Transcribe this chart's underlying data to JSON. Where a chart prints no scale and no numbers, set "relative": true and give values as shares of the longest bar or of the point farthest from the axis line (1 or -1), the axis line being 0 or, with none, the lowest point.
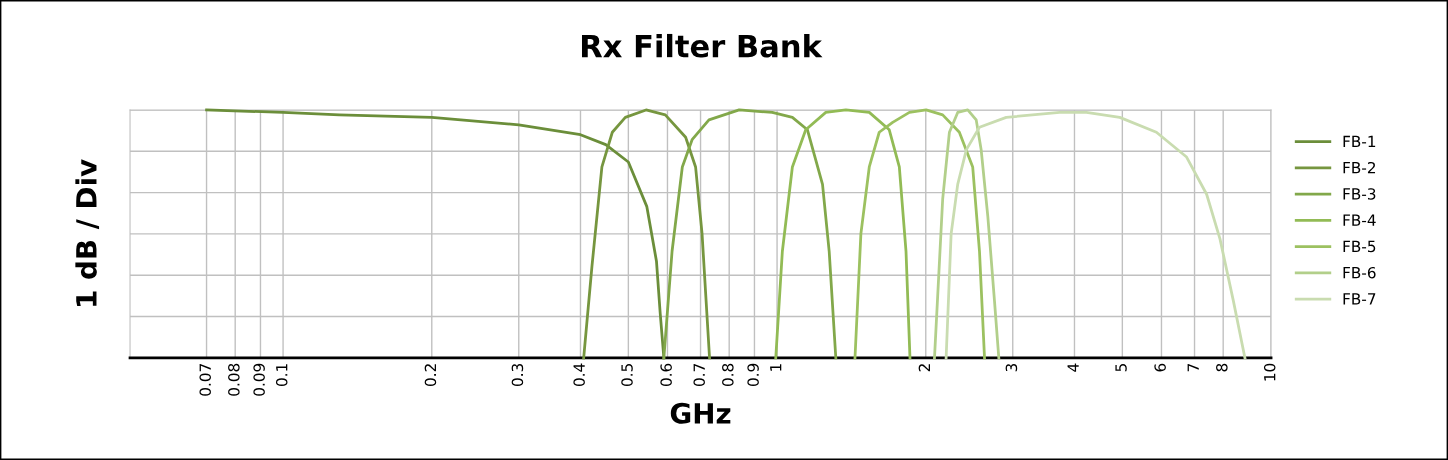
{
  "chart_data": {
    "type": "line",
    "title": "Rx Filter Bank",
    "xlabel": "GHz",
    "ylabel": "1 dB / Div",
    "relative": true,
    "log": "x",
    "xlim": [
      0.049,
      10
    ],
    "xticks": [
      0.07,
      0.08,
      0.09,
      0.1,
      0.2,
      0.3,
      0.4,
      0.5,
      0.6,
      0.7,
      0.8,
      0.9,
      1,
      2,
      3,
      4,
      5,
      6,
      7,
      8,
      10
    ],
    "tick_labels": "x",
    "grid": true,
    "legend": "right",
    "marker": "none",
    "line_style": "solid",
    "series": [
      {
        "name": "FB-1",
        "color": "#6b8e3a",
        "x": [
          0.07,
          0.1,
          0.13,
          0.2,
          0.3,
          0.4,
          0.45,
          0.5,
          0.545,
          0.57,
          0.58,
          0.59
        ],
        "values": [
          1,
          0.99,
          0.98,
          0.97,
          0.94,
          0.9,
          0.86,
          0.79,
          0.61,
          0.39,
          0.18,
          0
        ]
      },
      {
        "name": "FB-2",
        "color": "#76963f",
        "x": [
          0.406,
          0.422,
          0.442,
          0.464,
          0.493,
          0.543,
          0.594,
          0.653,
          0.684,
          0.705,
          0.73
        ],
        "values": [
          0,
          0.37,
          0.77,
          0.91,
          0.97,
          1.0,
          0.98,
          0.89,
          0.77,
          0.5,
          0
        ]
      },
      {
        "name": "FB-3",
        "color": "#82a84a",
        "x": [
          0.59,
          0.613,
          0.643,
          0.673,
          0.728,
          0.838,
          0.978,
          1.074,
          1.152,
          1.236,
          1.275,
          1.315
        ],
        "values": [
          0,
          0.43,
          0.77,
          0.88,
          0.96,
          1.0,
          0.99,
          0.97,
          0.92,
          0.7,
          0.43,
          0
        ]
      },
      {
        "name": "FB-4",
        "color": "#92bb55",
        "x": [
          0.994,
          1.025,
          1.074,
          1.143,
          1.255,
          1.378,
          1.537,
          1.687,
          1.768,
          1.824,
          1.858
        ],
        "values": [
          0,
          0.43,
          0.77,
          0.92,
          0.99,
          1.0,
          0.99,
          0.92,
          0.77,
          0.43,
          0
        ]
      },
      {
        "name": "FB-5",
        "color": "#9cc160",
        "x": [
          1.438,
          1.478,
          1.537,
          1.61,
          1.714,
          1.853,
          2.003,
          2.164,
          2.339,
          2.489,
          2.569,
          2.63
        ],
        "values": [
          0,
          0.5,
          0.77,
          0.91,
          0.95,
          0.99,
          1.0,
          0.98,
          0.91,
          0.77,
          0.43,
          0
        ]
      },
      {
        "name": "FB-6",
        "color": "#b2cf8a",
        "x": [
          2.083,
          2.164,
          2.233,
          2.321,
          2.432,
          2.53,
          2.589,
          2.671,
          2.755,
          2.811
        ],
        "values": [
          0,
          0.64,
          0.91,
          0.99,
          1.0,
          0.96,
          0.84,
          0.57,
          0.23,
          0
        ]
      },
      {
        "name": "FB-7",
        "color": "#c9dcb0",
        "x": [
          2.199,
          2.251,
          2.321,
          2.417,
          2.569,
          2.91,
          3.733,
          4.229,
          4.94,
          5.861,
          6.745,
          7.406,
          7.881,
          8.389,
          8.853
        ],
        "values": [
          0,
          0.5,
          0.7,
          0.84,
          0.93,
          0.97,
          0.99,
          0.99,
          0.97,
          0.91,
          0.81,
          0.66,
          0.48,
          0.23,
          0
        ]
      }
    ]
  }
}
